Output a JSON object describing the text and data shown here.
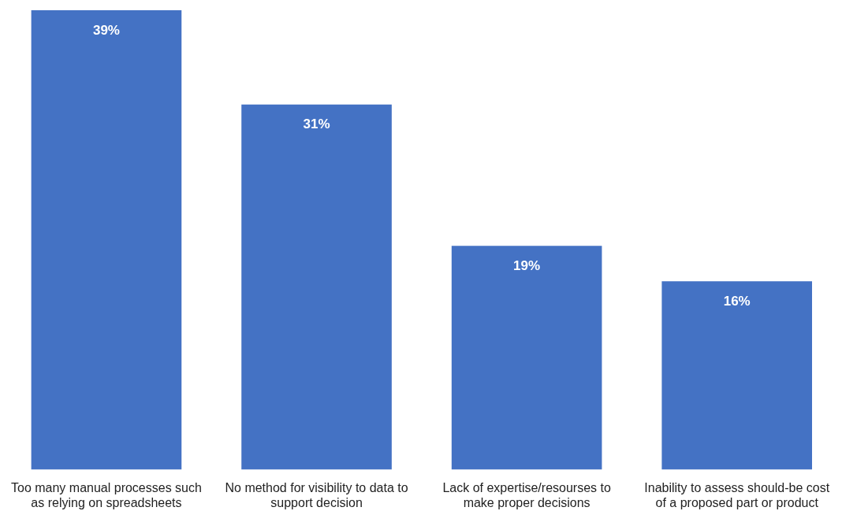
{
  "chart_data": {
    "type": "bar",
    "categories": [
      "Too many manual processes such as relying on spreadsheets",
      "No method for visibility to data to support decision",
      "Lack of expertise/resourses to make proper decisions",
      "Inability to assess should-be cost of a proposed part or product"
    ],
    "values": [
      39,
      31,
      19,
      16
    ],
    "value_labels": [
      "39%",
      "31%",
      "19%",
      "16%"
    ],
    "color": "#4472c4",
    "grid": false,
    "legend": false
  }
}
